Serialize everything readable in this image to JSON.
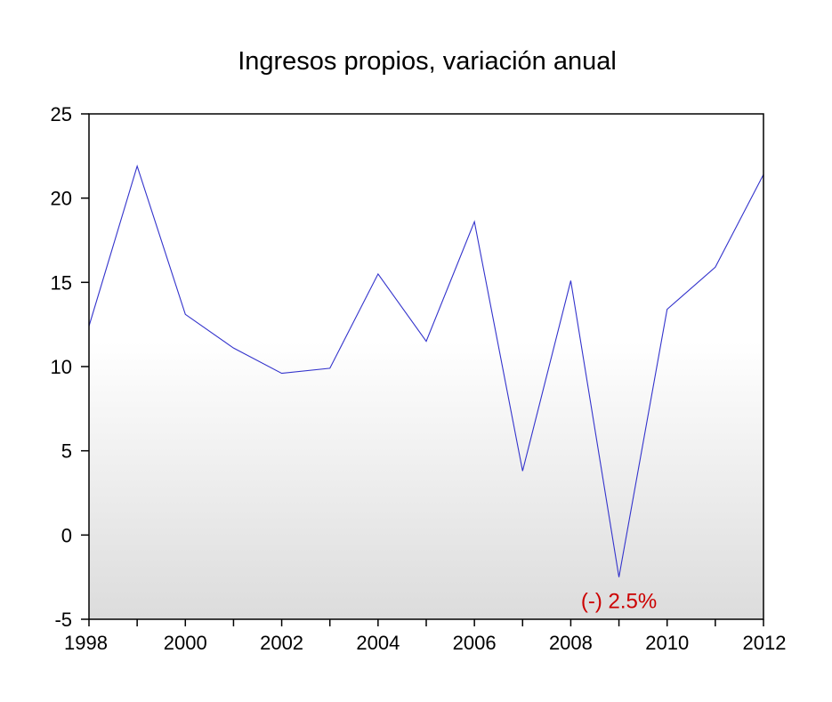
{
  "chart_data": {
    "type": "line",
    "title": "Ingresos propios, variación anual",
    "xlabel": "",
    "ylabel": "",
    "xlim": [
      1998,
      2012
    ],
    "ylim": [
      -5,
      25
    ],
    "x_ticks": [
      1998,
      2000,
      2002,
      2004,
      2006,
      2008,
      2010,
      2012
    ],
    "y_ticks": [
      -5,
      0,
      5,
      10,
      15,
      20,
      25
    ],
    "x_tick_labels": [
      "1998",
      "2000",
      "2002",
      "2004",
      "2006",
      "2008",
      "2010",
      "2012"
    ],
    "y_tick_labels": [
      "-5",
      "0",
      "5",
      "10",
      "15",
      "20",
      "25"
    ],
    "grid": false,
    "legend": "none",
    "background": "gradient white to light gray",
    "series": [
      {
        "color": "#3333cc",
        "x": [
          1998,
          1999,
          2000,
          2001,
          2002,
          2003,
          2004,
          2005,
          2006,
          2007,
          2008,
          2009,
          2010,
          2011,
          2012
        ],
        "values": [
          12.4,
          21.9,
          13.1,
          11.1,
          9.6,
          9.9,
          15.5,
          11.5,
          18.6,
          3.8,
          15.1,
          -2.5,
          13.4,
          15.9,
          21.4
        ]
      }
    ],
    "annotations": [
      {
        "text": "(-) 2.5%",
        "x": 2009,
        "y": -2.5,
        "color": "#cc0000"
      }
    ]
  }
}
